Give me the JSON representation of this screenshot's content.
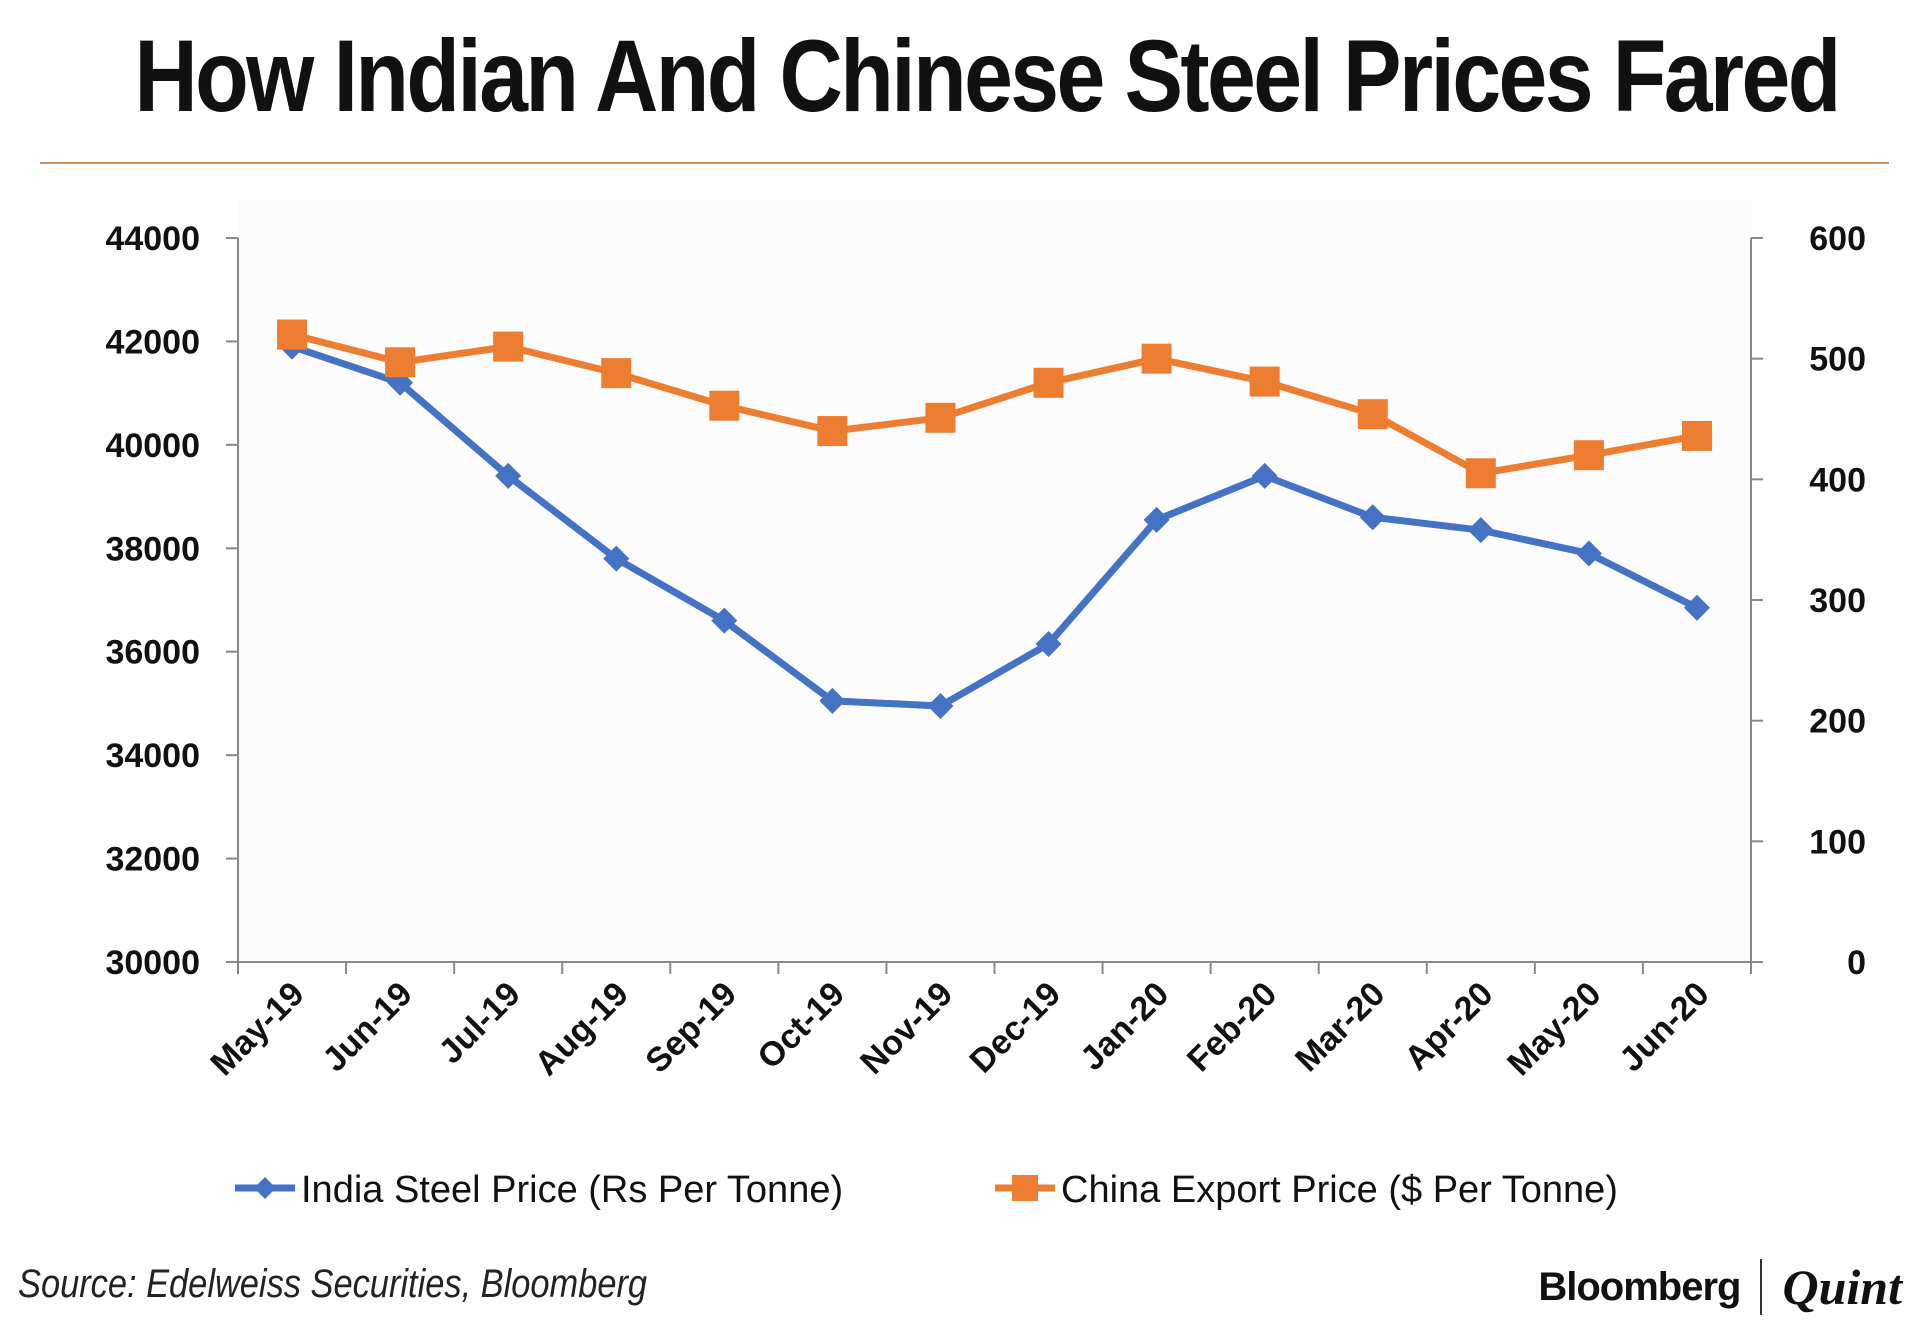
{
  "title": "How Indian And Chinese Steel Prices Fared",
  "source": "Source: Edelweiss Securities, Bloomberg",
  "brand": {
    "left": "Bloomberg",
    "right": "Quint"
  },
  "colors": {
    "india": "#4472c4",
    "china": "#ed7d31",
    "rule": "#d98b5a"
  },
  "chart_data": {
    "type": "line",
    "categories": [
      "May-19",
      "Jun-19",
      "Jul-19",
      "Aug-19",
      "Sep-19",
      "Oct-19",
      "Nov-19",
      "Dec-19",
      "Jan-20",
      "Feb-20",
      "Mar-20",
      "Apr-20",
      "May-20",
      "Jun-20"
    ],
    "series": [
      {
        "name": "India Steel Price (Rs Per Tonne)",
        "axis": "left",
        "marker": "diamond",
        "values": [
          41900,
          41200,
          39400,
          37800,
          36600,
          35050,
          34950,
          36150,
          38550,
          39400,
          38600,
          38350,
          37900,
          36850
        ]
      },
      {
        "name": "China  Export Price ($ Per Tonne)",
        "axis": "right",
        "marker": "square",
        "values": [
          520,
          497,
          510,
          488,
          461,
          440,
          451,
          480,
          500,
          481,
          454,
          405,
          420,
          436
        ]
      }
    ],
    "y_left": {
      "min": 30000,
      "max": 44000,
      "ticks": [
        "30000",
        "32000",
        "34000",
        "36000",
        "38000",
        "40000",
        "42000",
        "44000"
      ]
    },
    "y_right": {
      "min": 0,
      "max": 600,
      "ticks": [
        "0",
        "100",
        "200",
        "300",
        "400",
        "500",
        "600"
      ]
    },
    "grid": false,
    "legend_position": "bottom"
  }
}
